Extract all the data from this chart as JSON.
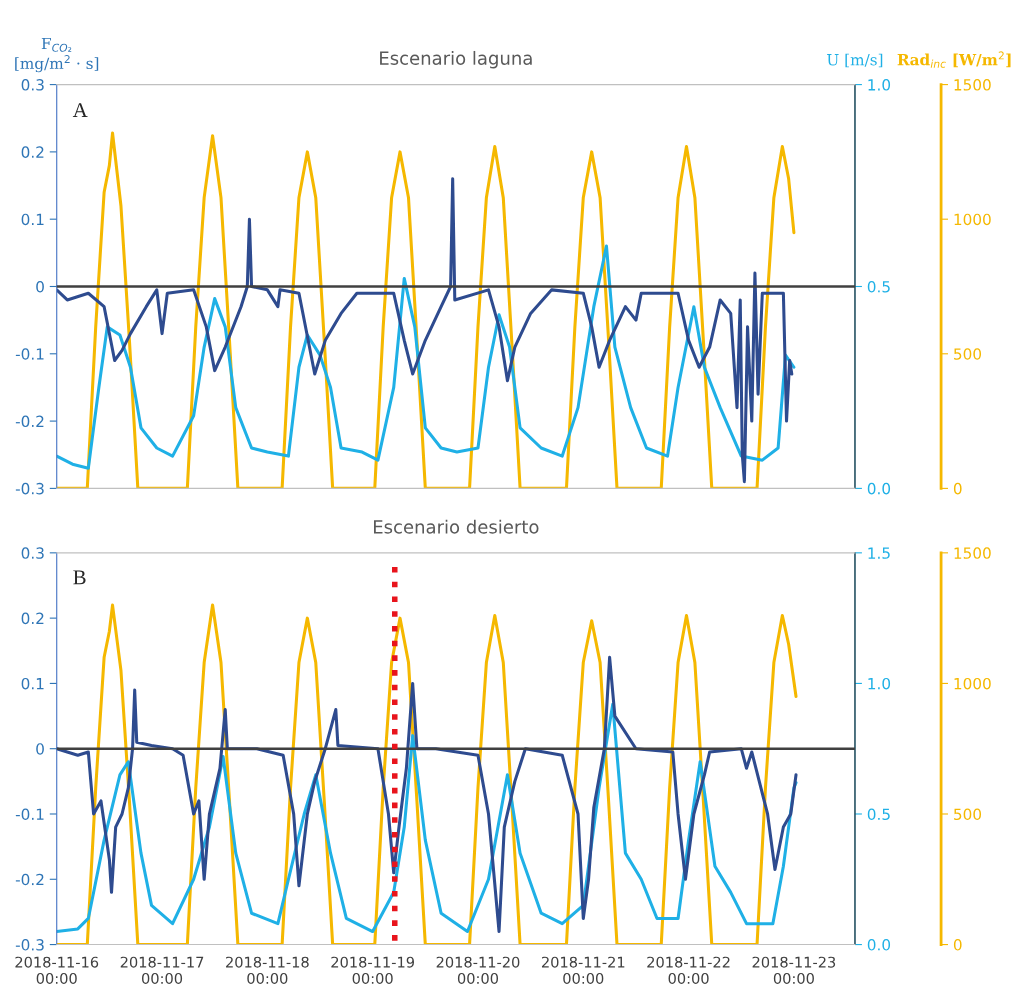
{
  "chart_data": [
    {
      "type": "line",
      "title": "Escenario laguna",
      "ylabel": "F$_{CO₂}$\n[mg/m$^{2}$ · s]",
      "y2label": "U [m/s]",
      "y3label": "Rad$_{inc}$ [W/m$^{2}$]",
      "annotations": [
        "A"
      ],
      "tick_labels": "y",
      "grid": false,
      "legend": false,
      "xlim": [
        "2018-11-16T00:00",
        "2018-11-23T13:55"
      ],
      "xticks": [
        {
          "value": "2018-11-16T00:00",
          "label": null
        },
        {
          "value": "2018-11-17T00:00",
          "label": null
        },
        {
          "value": "2018-11-18T00:00",
          "label": null
        },
        {
          "value": "2018-11-19T00:00",
          "label": null
        },
        {
          "value": "2018-11-20T00:00",
          "label": null
        },
        {
          "value": "2018-11-21T00:00",
          "label": null
        },
        {
          "value": "2018-11-22T00:00",
          "label": null
        },
        {
          "value": "2018-11-23T00:00",
          "label": null
        }
      ],
      "ylim": [
        -0.3,
        0.3
      ],
      "yticks": [
        -0.3,
        -0.2,
        -0.1,
        0,
        0.1,
        0.2,
        0.3
      ],
      "y2lim": [
        0,
        1.0
      ],
      "y2ticks": [
        {
          "value": 0,
          "label": "0.0"
        },
        {
          "value": 0.5,
          "label": "0.5"
        },
        {
          "value": 1.0,
          "label": "1.0"
        }
      ],
      "y3lim": [
        0,
        1500
      ],
      "y3ticks": [
        0,
        500,
        1000,
        1500
      ],
      "ref_lines": [
        {
          "axis": "y",
          "value": 0,
          "color": "#404040",
          "line_style": "solid"
        }
      ],
      "series": [
        {
          "color": "#f5b800",
          "axis": "y3",
          "x": [
            "2018-11-16T00:00",
            "2018-11-16T06:58",
            "2018-11-16T08:53",
            "2018-11-16T10:48",
            "2018-11-16T12:00",
            "2018-11-16T12:43",
            "2018-11-16T14:38",
            "2018-11-16T16:34",
            "2018-11-16T18:29",
            "2018-11-17T05:46",
            "2018-11-17T07:41",
            "2018-11-17T09:36",
            "2018-11-17T11:31",
            "2018-11-17T13:26",
            "2018-11-17T15:22",
            "2018-11-17T17:17",
            "2018-11-18T03:22",
            "2018-11-18T05:17",
            "2018-11-18T07:12",
            "2018-11-18T09:07",
            "2018-11-18T11:02",
            "2018-11-18T12:58",
            "2018-11-18T14:53",
            "2018-11-19T00:29",
            "2018-11-19T02:24",
            "2018-11-19T04:19",
            "2018-11-19T06:14",
            "2018-11-19T08:10",
            "2018-11-19T10:05",
            "2018-11-19T12:00",
            "2018-11-19T22:05",
            "2018-11-20T00:00",
            "2018-11-20T01:55",
            "2018-11-20T03:50",
            "2018-11-20T05:46",
            "2018-11-20T07:41",
            "2018-11-20T09:36",
            "2018-11-20T20:10",
            "2018-11-20T22:05",
            "2018-11-21T00:00",
            "2018-11-21T01:55",
            "2018-11-21T03:50",
            "2018-11-21T05:46",
            "2018-11-21T07:41",
            "2018-11-21T17:46",
            "2018-11-21T19:41",
            "2018-11-21T21:36",
            "2018-11-21T23:31",
            "2018-11-22T01:26",
            "2018-11-22T03:22",
            "2018-11-22T05:17",
            "2018-11-22T15:36",
            "2018-11-22T17:31",
            "2018-11-22T19:26",
            "2018-11-22T21:22",
            "2018-11-22T22:48",
            "2018-11-23T00:00"
          ],
          "values": [
            0,
            0,
            600,
            1100,
            1200,
            1320,
            1050,
            550,
            0,
            0,
            600,
            1080,
            1310,
            1080,
            550,
            0,
            0,
            600,
            1080,
            1250,
            1080,
            550,
            0,
            0,
            600,
            1080,
            1250,
            1080,
            550,
            0,
            0,
            600,
            1080,
            1270,
            1080,
            550,
            0,
            0,
            600,
            1080,
            1250,
            1080,
            550,
            0,
            0,
            600,
            1080,
            1270,
            1080,
            550,
            0,
            0,
            600,
            1080,
            1270,
            1150,
            950
          ]
        },
        {
          "color": "#1fb0e6",
          "axis": "y2",
          "x": [
            "2018-11-16T00:00",
            "2018-11-16T03:36",
            "2018-11-16T07:12",
            "2018-11-16T09:36",
            "2018-11-16T11:31",
            "2018-11-16T14:24",
            "2018-11-16T16:48",
            "2018-11-16T19:12",
            "2018-11-16T22:48",
            "2018-11-17T02:24",
            "2018-11-17T07:12",
            "2018-11-17T09:36",
            "2018-11-17T12:00",
            "2018-11-17T14:24",
            "2018-11-17T16:48",
            "2018-11-17T20:24",
            "2018-11-18T00:00",
            "2018-11-18T04:48",
            "2018-11-18T07:12",
            "2018-11-18T09:07",
            "2018-11-18T12:00",
            "2018-11-18T14:24",
            "2018-11-18T16:48",
            "2018-11-18T21:36",
            "2018-11-19T01:12",
            "2018-11-19T04:48",
            "2018-11-19T07:12",
            "2018-11-19T09:36",
            "2018-11-19T12:00",
            "2018-11-19T15:36",
            "2018-11-19T19:12",
            "2018-11-20T00:00",
            "2018-11-20T02:24",
            "2018-11-20T04:48",
            "2018-11-20T07:12",
            "2018-11-20T09:36",
            "2018-11-20T14:24",
            "2018-11-20T19:12",
            "2018-11-20T22:48",
            "2018-11-21T02:24",
            "2018-11-21T05:17",
            "2018-11-21T07:12",
            "2018-11-21T10:48",
            "2018-11-21T14:24",
            "2018-11-21T19:12",
            "2018-11-21T21:36",
            "2018-11-22T01:12",
            "2018-11-22T03:36",
            "2018-11-22T07:12",
            "2018-11-22T12:00",
            "2018-11-22T16:48",
            "2018-11-22T20:24",
            "2018-11-22T22:05",
            "2018-11-23T00:00"
          ],
          "values": [
            0.08,
            0.06,
            0.05,
            0.25,
            0.4,
            0.38,
            0.3,
            0.15,
            0.1,
            0.08,
            0.18,
            0.35,
            0.47,
            0.4,
            0.2,
            0.1,
            0.09,
            0.08,
            0.3,
            0.38,
            0.33,
            0.25,
            0.1,
            0.09,
            0.07,
            0.25,
            0.52,
            0.4,
            0.15,
            0.1,
            0.09,
            0.1,
            0.3,
            0.43,
            0.35,
            0.15,
            0.1,
            0.08,
            0.2,
            0.45,
            0.6,
            0.35,
            0.2,
            0.1,
            0.08,
            0.25,
            0.45,
            0.3,
            0.2,
            0.08,
            0.07,
            0.1,
            0.33,
            0.3
          ]
        },
        {
          "color": "#2e4b8f",
          "axis": "y",
          "x": [
            "2018-11-16T00:00",
            "2018-11-16T02:24",
            "2018-11-16T07:12",
            "2018-11-16T10:48",
            "2018-11-16T13:12",
            "2018-11-16T14:53",
            "2018-11-16T16:48",
            "2018-11-16T20:24",
            "2018-11-16T22:48",
            "2018-11-17T00:00",
            "2018-11-17T01:12",
            "2018-11-17T07:12",
            "2018-11-17T10:05",
            "2018-11-17T12:00",
            "2018-11-17T14:24",
            "2018-11-17T18:00",
            "2018-11-17T19:26",
            "2018-11-17T19:55",
            "2018-11-17T20:24",
            "2018-11-18T00:00",
            "2018-11-18T02:24",
            "2018-11-18T02:53",
            "2018-11-18T07:12",
            "2018-11-18T09:36",
            "2018-11-18T10:48",
            "2018-11-18T13:12",
            "2018-11-18T16:48",
            "2018-11-18T20:24",
            "2018-11-19T04:48",
            "2018-11-19T07:12",
            "2018-11-19T09:07",
            "2018-11-19T12:00",
            "2018-11-19T15:36",
            "2018-11-19T17:46",
            "2018-11-19T18:14",
            "2018-11-19T18:43",
            "2018-11-20T02:24",
            "2018-11-20T04:48",
            "2018-11-20T06:43",
            "2018-11-20T08:24",
            "2018-11-20T12:00",
            "2018-11-20T16:48",
            "2018-11-21T00:00",
            "2018-11-21T01:55",
            "2018-11-21T03:36",
            "2018-11-21T06:00",
            "2018-11-21T09:36",
            "2018-11-21T12:00",
            "2018-11-21T13:12",
            "2018-11-21T21:36",
            "2018-11-22T00:00",
            "2018-11-22T02:24",
            "2018-11-22T04:48",
            "2018-11-22T07:12",
            "2018-11-22T09:36",
            "2018-11-22T11:02",
            "2018-11-22T11:46",
            "2018-11-22T12:14",
            "2018-11-22T12:43",
            "2018-11-22T13:26",
            "2018-11-22T14:24",
            "2018-11-22T15:07",
            "2018-11-22T15:50",
            "2018-11-22T16:48",
            "2018-11-22T19:12",
            "2018-11-22T21:36",
            "2018-11-22T22:19",
            "2018-11-22T23:02",
            "2018-11-22T23:31"
          ],
          "values": [
            -0.005,
            -0.02,
            -0.01,
            -0.03,
            -0.11,
            -0.095,
            -0.07,
            -0.03,
            -0.005,
            -0.07,
            -0.01,
            -0.005,
            -0.06,
            -0.125,
            -0.09,
            -0.03,
            0.0,
            0.1,
            0.0,
            -0.005,
            -0.03,
            -0.005,
            -0.01,
            -0.09,
            -0.13,
            -0.08,
            -0.04,
            -0.01,
            -0.01,
            -0.08,
            -0.13,
            -0.08,
            -0.03,
            0.0,
            0.16,
            -0.02,
            -0.005,
            -0.06,
            -0.14,
            -0.09,
            -0.04,
            -0.005,
            -0.01,
            -0.06,
            -0.12,
            -0.08,
            -0.03,
            -0.05,
            -0.01,
            -0.01,
            -0.08,
            -0.12,
            -0.09,
            -0.02,
            -0.04,
            -0.18,
            -0.02,
            -0.25,
            -0.29,
            -0.06,
            -0.2,
            0.02,
            -0.16,
            -0.01,
            -0.01,
            -0.01,
            -0.2,
            -0.11,
            -0.13
          ]
        }
      ]
    },
    {
      "type": "line",
      "title": "Escenario desierto",
      "annotations": [
        "B"
      ],
      "grid": false,
      "legend": false,
      "xlim": [
        "2018-11-16T00:00",
        "2018-11-23T13:55"
      ],
      "xticks": [
        {
          "value": "2018-11-16T00:00",
          "label": "2018-11-16\n00:00"
        },
        {
          "value": "2018-11-17T00:00",
          "label": "2018-11-17\n00:00"
        },
        {
          "value": "2018-11-18T00:00",
          "label": "2018-11-18\n00:00"
        },
        {
          "value": "2018-11-19T00:00",
          "label": "2018-11-19\n00:00"
        },
        {
          "value": "2018-11-20T00:00",
          "label": "2018-11-20\n00:00"
        },
        {
          "value": "2018-11-21T00:00",
          "label": "2018-11-21\n00:00"
        },
        {
          "value": "2018-11-22T00:00",
          "label": "2018-11-22\n00:00"
        },
        {
          "value": "2018-11-23T00:00",
          "label": "2018-11-23\n00:00"
        }
      ],
      "ylim": [
        -0.3,
        0.3
      ],
      "yticks": [
        -0.3,
        -0.2,
        -0.1,
        0,
        0.1,
        0.2,
        0.3
      ],
      "y2lim": [
        0,
        1.5
      ],
      "y2ticks": [
        {
          "value": 0,
          "label": "0.0"
        },
        {
          "value": 0.5,
          "label": "0.5"
        },
        {
          "value": 1.0,
          "label": "1.0"
        },
        {
          "value": 1.5,
          "label": "1.5"
        }
      ],
      "y3lim": [
        0,
        1500
      ],
      "y3ticks": [
        0,
        500,
        1000,
        1500
      ],
      "ref_lines": [
        {
          "axis": "y",
          "value": 0,
          "color": "#404040",
          "line_style": "solid"
        },
        {
          "axis": "x",
          "value": "2018-11-19T05:02",
          "color": "#e8141c",
          "line_style": "dotted"
        }
      ],
      "series": [
        {
          "color": "#f5b800",
          "axis": "y3",
          "x": [
            "2018-11-16T00:00",
            "2018-11-16T06:58",
            "2018-11-16T08:53",
            "2018-11-16T10:48",
            "2018-11-16T12:00",
            "2018-11-16T12:43",
            "2018-11-16T14:38",
            "2018-11-16T16:34",
            "2018-11-16T18:29",
            "2018-11-17T05:46",
            "2018-11-17T07:41",
            "2018-11-17T09:36",
            "2018-11-17T11:31",
            "2018-11-17T13:26",
            "2018-11-17T15:22",
            "2018-11-17T17:17",
            "2018-11-18T03:22",
            "2018-11-18T05:17",
            "2018-11-18T07:12",
            "2018-11-18T09:07",
            "2018-11-18T11:02",
            "2018-11-18T12:58",
            "2018-11-18T14:53",
            "2018-11-19T00:29",
            "2018-11-19T02:24",
            "2018-11-19T04:19",
            "2018-11-19T06:14",
            "2018-11-19T08:10",
            "2018-11-19T10:05",
            "2018-11-19T12:00",
            "2018-11-19T22:05",
            "2018-11-20T00:00",
            "2018-11-20T01:55",
            "2018-11-20T03:50",
            "2018-11-20T05:46",
            "2018-11-20T07:41",
            "2018-11-20T09:36",
            "2018-11-20T20:10",
            "2018-11-20T22:05",
            "2018-11-21T00:00",
            "2018-11-21T01:55",
            "2018-11-21T03:50",
            "2018-11-21T05:46",
            "2018-11-21T07:41",
            "2018-11-21T17:46",
            "2018-11-21T19:41",
            "2018-11-21T21:36",
            "2018-11-21T23:31",
            "2018-11-22T01:26",
            "2018-11-22T03:22",
            "2018-11-22T05:17",
            "2018-11-22T15:36",
            "2018-11-22T17:31",
            "2018-11-22T19:26",
            "2018-11-22T21:22",
            "2018-11-22T22:48",
            "2018-11-23T00:29"
          ],
          "values": [
            0,
            0,
            600,
            1100,
            1200,
            1300,
            1050,
            550,
            0,
            0,
            600,
            1080,
            1300,
            1080,
            550,
            0,
            0,
            600,
            1080,
            1250,
            1080,
            550,
            0,
            0,
            600,
            1080,
            1250,
            1080,
            550,
            0,
            0,
            600,
            1080,
            1260,
            1080,
            550,
            0,
            0,
            600,
            1080,
            1240,
            1080,
            550,
            0,
            0,
            600,
            1080,
            1260,
            1080,
            550,
            0,
            0,
            600,
            1080,
            1260,
            1150,
            950
          ]
        },
        {
          "color": "#1fb0e6",
          "axis": "y2",
          "x": [
            "2018-11-16T00:00",
            "2018-11-16T04:48",
            "2018-11-16T07:12",
            "2018-11-16T10:48",
            "2018-11-16T14:24",
            "2018-11-16T16:19",
            "2018-11-16T19:12",
            "2018-11-16T21:36",
            "2018-11-17T02:24",
            "2018-11-17T07:12",
            "2018-11-17T10:48",
            "2018-11-17T13:55",
            "2018-11-17T16:48",
            "2018-11-17T20:24",
            "2018-11-18T02:24",
            "2018-11-18T04:48",
            "2018-11-18T08:24",
            "2018-11-18T11:02",
            "2018-11-18T14:24",
            "2018-11-18T18:00",
            "2018-11-19T00:00",
            "2018-11-19T04:48",
            "2018-11-19T07:12",
            "2018-11-19T09:07",
            "2018-11-19T12:00",
            "2018-11-19T15:36",
            "2018-11-19T21:36",
            "2018-11-20T02:24",
            "2018-11-20T06:43",
            "2018-11-20T09:36",
            "2018-11-20T14:24",
            "2018-11-20T19:12",
            "2018-11-21T00:00",
            "2018-11-21T03:36",
            "2018-11-21T06:43",
            "2018-11-21T09:36",
            "2018-11-21T13:12",
            "2018-11-21T16:48",
            "2018-11-21T21:36",
            "2018-11-22T00:00",
            "2018-11-22T02:38",
            "2018-11-22T06:00",
            "2018-11-22T09:36",
            "2018-11-22T13:12",
            "2018-11-22T19:12",
            "2018-11-22T21:36",
            "2018-11-23T00:00",
            "2018-11-23T00:29"
          ],
          "values": [
            0.05,
            0.06,
            0.1,
            0.4,
            0.65,
            0.7,
            0.35,
            0.15,
            0.08,
            0.25,
            0.45,
            0.72,
            0.35,
            0.12,
            0.08,
            0.25,
            0.5,
            0.65,
            0.35,
            0.1,
            0.05,
            0.2,
            0.45,
            0.8,
            0.4,
            0.12,
            0.05,
            0.25,
            0.65,
            0.35,
            0.12,
            0.08,
            0.15,
            0.6,
            0.92,
            0.35,
            0.25,
            0.1,
            0.1,
            0.4,
            0.7,
            0.3,
            0.2,
            0.08,
            0.08,
            0.3,
            0.6,
            0.62
          ]
        },
        {
          "color": "#2e4b8f",
          "axis": "y",
          "x": [
            "2018-11-16T00:00",
            "2018-11-16T04:48",
            "2018-11-16T07:12",
            "2018-11-16T08:24",
            "2018-11-16T10:05",
            "2018-11-16T12:00",
            "2018-11-16T12:29",
            "2018-11-16T13:26",
            "2018-11-16T14:53",
            "2018-11-16T16:19",
            "2018-11-16T17:17",
            "2018-11-16T17:46",
            "2018-11-16T18:14",
            "2018-11-16T21:36",
            "2018-11-17T02:24",
            "2018-11-17T04:48",
            "2018-11-17T07:12",
            "2018-11-17T08:24",
            "2018-11-17T09:36",
            "2018-11-17T10:48",
            "2018-11-17T13:12",
            "2018-11-17T14:24",
            "2018-11-17T14:53",
            "2018-11-17T21:36",
            "2018-11-18T03:36",
            "2018-11-18T06:00",
            "2018-11-18T07:12",
            "2018-11-18T09:07",
            "2018-11-18T10:48",
            "2018-11-18T13:12",
            "2018-11-18T15:36",
            "2018-11-18T16:05",
            "2018-11-19T01:12",
            "2018-11-19T03:36",
            "2018-11-19T04:48",
            "2018-11-19T06:00",
            "2018-11-19T07:41",
            "2018-11-19T09:07",
            "2018-11-19T10:05",
            "2018-11-19T14:24",
            "2018-11-20T00:00",
            "2018-11-20T02:24",
            "2018-11-20T04:48",
            "2018-11-20T06:00",
            "2018-11-20T08:24",
            "2018-11-20T10:48",
            "2018-11-20T19:12",
            "2018-11-20T22:48",
            "2018-11-21T00:00",
            "2018-11-21T01:12",
            "2018-11-21T02:24",
            "2018-11-21T04:48",
            "2018-11-21T06:00",
            "2018-11-21T07:12",
            "2018-11-21T12:00",
            "2018-11-21T20:24",
            "2018-11-21T21:36",
            "2018-11-21T23:17",
            "2018-11-22T01:12",
            "2018-11-22T03:36",
            "2018-11-22T04:48",
            "2018-11-22T12:00",
            "2018-11-22T13:12",
            "2018-11-22T14:24",
            "2018-11-22T18:00",
            "2018-11-22T19:41",
            "2018-11-22T21:36",
            "2018-11-22T23:17",
            "2018-11-23T00:29"
          ],
          "values": [
            0.0,
            -0.01,
            -0.005,
            -0.1,
            -0.08,
            -0.17,
            -0.22,
            -0.12,
            -0.1,
            -0.06,
            0.0,
            0.09,
            0.01,
            0.005,
            0.0,
            -0.01,
            -0.1,
            -0.08,
            -0.2,
            -0.1,
            -0.03,
            0.06,
            0.0,
            0.0,
            -0.01,
            -0.1,
            -0.21,
            -0.1,
            -0.05,
            0.0,
            0.06,
            0.005,
            0.0,
            -0.1,
            -0.19,
            -0.12,
            -0.03,
            0.1,
            0.0,
            0.0,
            -0.01,
            -0.1,
            -0.28,
            -0.12,
            -0.05,
            0.0,
            -0.01,
            -0.1,
            -0.26,
            -0.2,
            -0.09,
            0.0,
            0.14,
            0.05,
            0.0,
            -0.005,
            -0.1,
            -0.2,
            -0.1,
            -0.04,
            -0.005,
            0.0,
            -0.03,
            -0.005,
            -0.1,
            -0.185,
            -0.12,
            -0.1,
            -0.04
          ]
        }
      ]
    }
  ]
}
